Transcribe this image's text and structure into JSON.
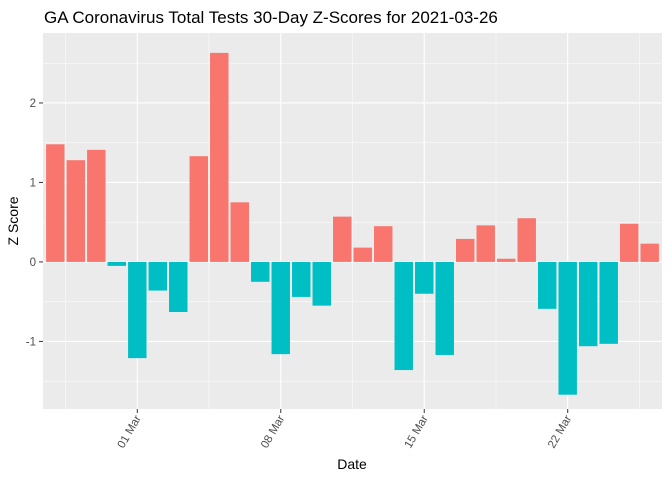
{
  "chart_data": {
    "type": "bar",
    "title": "GA Coronavirus Total Tests 30-Day Z-Scores for 2021-03-26",
    "xlabel": "Date",
    "ylabel": "Z Score",
    "x": [
      "2021-02-25",
      "2021-02-26",
      "2021-02-27",
      "2021-02-28",
      "2021-03-01",
      "2021-03-02",
      "2021-03-03",
      "2021-03-04",
      "2021-03-05",
      "2021-03-06",
      "2021-03-07",
      "2021-03-08",
      "2021-03-09",
      "2021-03-10",
      "2021-03-11",
      "2021-03-12",
      "2021-03-13",
      "2021-03-14",
      "2021-03-15",
      "2021-03-16",
      "2021-03-17",
      "2021-03-18",
      "2021-03-19",
      "2021-03-20",
      "2021-03-21",
      "2021-03-22",
      "2021-03-23",
      "2021-03-24",
      "2021-03-25",
      "2021-03-26"
    ],
    "values": [
      1.48,
      1.28,
      1.41,
      -0.05,
      -1.21,
      -0.36,
      -0.63,
      1.33,
      2.63,
      0.75,
      -0.25,
      -1.16,
      -0.44,
      -0.55,
      0.57,
      0.18,
      0.45,
      -1.36,
      -0.4,
      -1.17,
      0.29,
      0.46,
      0.04,
      0.55,
      -0.59,
      -1.67,
      -1.06,
      -1.03,
      0.48,
      0.23
    ],
    "ylim": [
      -1.85,
      2.88
    ],
    "y_ticks": [
      -1,
      0,
      1,
      2
    ],
    "x_ticks": [
      {
        "date": "2021-03-01",
        "label": "01 Mar"
      },
      {
        "date": "2021-03-08",
        "label": "08 Mar"
      },
      {
        "date": "2021-03-15",
        "label": "15 Mar"
      },
      {
        "date": "2021-03-22",
        "label": "22 Mar"
      }
    ],
    "grid": true,
    "legend": "none",
    "colors": {
      "positive": "#F8766D",
      "negative": "#00BFC4",
      "panel": "#EBEBEB",
      "grid": "#FFFFFF"
    }
  }
}
